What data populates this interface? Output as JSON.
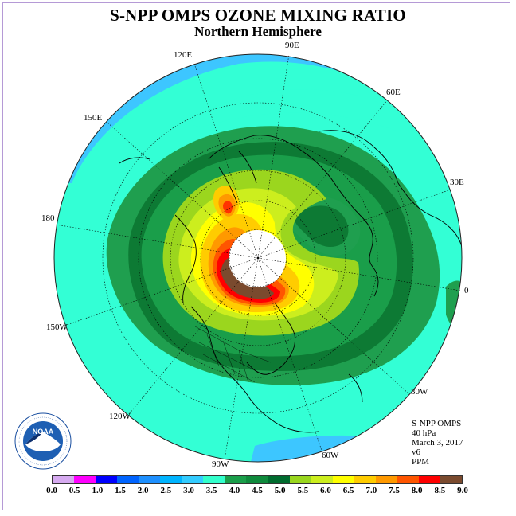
{
  "title": "S-NPP OMPS OZONE MIXING RATIO",
  "subtitle": "Northern Hemisphere",
  "longitude_labels": [
    {
      "text": "90E",
      "id": "lon-90e"
    },
    {
      "text": "60E",
      "id": "lon-60e"
    },
    {
      "text": "30E",
      "id": "lon-30e"
    },
    {
      "text": "0",
      "id": "lon-0"
    },
    {
      "text": "30W",
      "id": "lon-30w"
    },
    {
      "text": "60W",
      "id": "lon-60w"
    },
    {
      "text": "90W",
      "id": "lon-90w"
    },
    {
      "text": "120W",
      "id": "lon-120w"
    },
    {
      "text": "150W",
      "id": "lon-150w"
    },
    {
      "text": "180",
      "id": "lon-180"
    },
    {
      "text": "150E",
      "id": "lon-150e"
    },
    {
      "text": "120E",
      "id": "lon-120e"
    }
  ],
  "info": {
    "instrument": "S-NPP OMPS",
    "level": "40 hPa",
    "date": "March 3, 2017",
    "version": "v6",
    "units": "PPM"
  },
  "logo_text": "NOAA",
  "colorbar": {
    "ticks": [
      "0.0",
      "0.5",
      "1.0",
      "1.5",
      "2.0",
      "2.5",
      "3.0",
      "3.5",
      "4.0",
      "4.5",
      "5.0",
      "5.5",
      "6.0",
      "6.5",
      "7.0",
      "7.5",
      "8.0",
      "8.5",
      "9.0"
    ],
    "colors": [
      "#b77be0",
      "#d6aaf0",
      "#ff00ff",
      "#0000ff",
      "#0064ff",
      "#1e90ff",
      "#00b4ff",
      "#33ccff",
      "#33ffcc",
      "#1a9e4a",
      "#0f8a3c",
      "#006b2e",
      "#99d61e",
      "#ccee1e",
      "#ffff00",
      "#ffcc00",
      "#ff9900",
      "#ff5500",
      "#ff0000",
      "#7a4a2e"
    ]
  },
  "chart_data": {
    "type": "map",
    "projection": "north polar stereographic",
    "variable": "ozone mixing ratio",
    "units": "PPM",
    "pressure_level": "40 hPa",
    "date": "March 3, 2017",
    "levels": [
      0.0,
      0.5,
      1.0,
      1.5,
      2.0,
      2.5,
      3.0,
      3.5,
      4.0,
      4.5,
      5.0,
      5.5,
      6.0,
      6.5,
      7.0,
      7.5,
      8.0,
      8.5,
      9.0
    ]
  }
}
